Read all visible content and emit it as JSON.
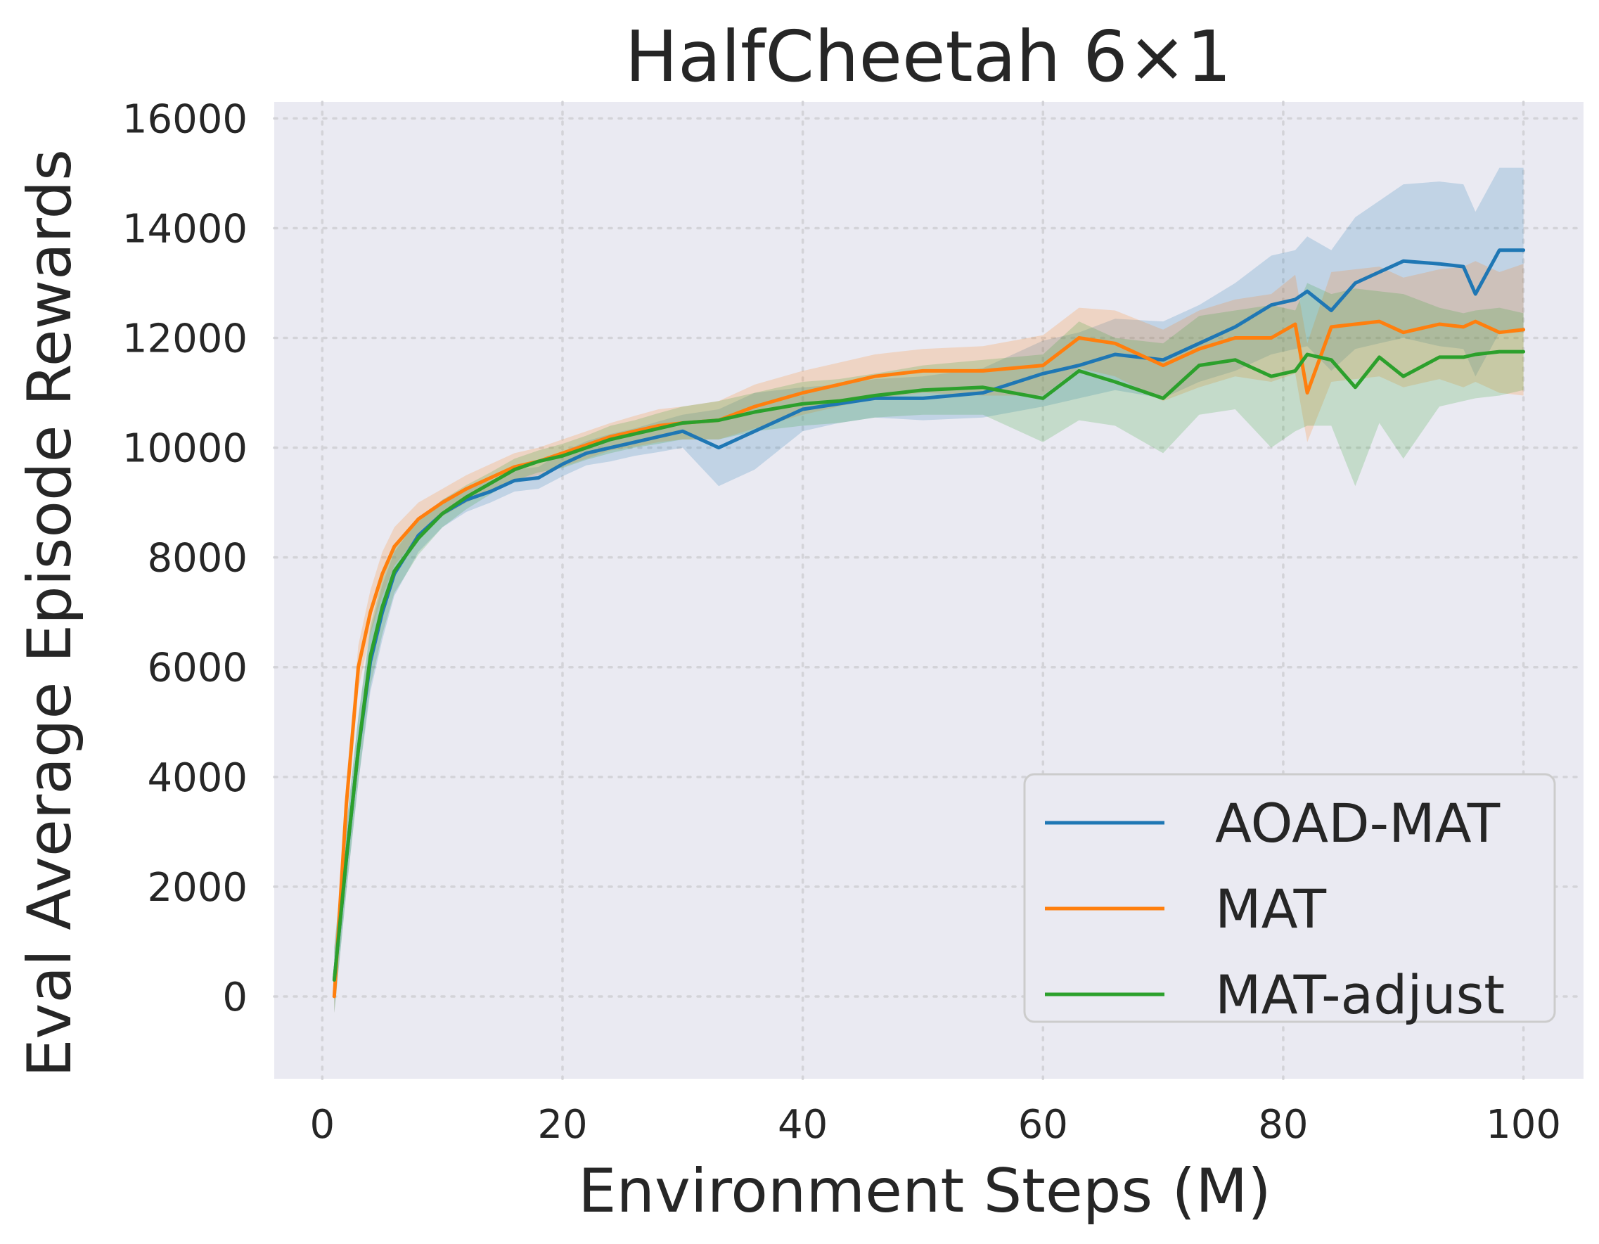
{
  "chart_data": {
    "type": "line",
    "title": "HalfCheetah 6×1",
    "xlabel": "Environment Steps (M)",
    "ylabel": "Eval Average Episode Rewards",
    "xlim": [
      -4,
      105
    ],
    "ylim": [
      -1500,
      16300
    ],
    "xticks": [
      0,
      20,
      40,
      60,
      80,
      100
    ],
    "xtick_labels": [
      "0",
      "20",
      "40",
      "60",
      "80",
      "100"
    ],
    "yticks": [
      0,
      2000,
      4000,
      6000,
      8000,
      10000,
      12000,
      14000,
      16000
    ],
    "ytick_labels": [
      "0",
      "2000",
      "4000",
      "6000",
      "8000",
      "10000",
      "12000",
      "14000",
      "16000"
    ],
    "grid": true,
    "grid_style": "dotted",
    "background": "#eaeaf2",
    "legend_position": "lower-right",
    "x": [
      1,
      2,
      3,
      4,
      5,
      6,
      8,
      10,
      12,
      14,
      16,
      18,
      20,
      22,
      24,
      26,
      28,
      30,
      33,
      36,
      40,
      43,
      46,
      50,
      55,
      60,
      63,
      66,
      70,
      73,
      76,
      79,
      81,
      82,
      84,
      86,
      88,
      90,
      93,
      95,
      96,
      98,
      100
    ],
    "series": [
      {
        "name": "AOAD-MAT",
        "color": "#1f77b4",
        "values": [
          300,
          2500,
          4500,
          6100,
          7000,
          7700,
          8400,
          8800,
          9050,
          9200,
          9400,
          9450,
          9700,
          9900,
          10000,
          10100,
          10200,
          10300,
          10000,
          10300,
          10700,
          10800,
          10900,
          10900,
          11000,
          11350,
          11500,
          11700,
          11600,
          11900,
          12200,
          12600,
          12700,
          12850,
          12500,
          13000,
          13200,
          13400,
          13350,
          13300,
          12800,
          13600,
          13600
        ],
        "band": [
          600,
          600,
          600,
          550,
          500,
          400,
          300,
          250,
          220,
          200,
          200,
          200,
          220,
          220,
          250,
          250,
          280,
          300,
          700,
          700,
          400,
          350,
          350,
          400,
          450,
          600,
          600,
          650,
          700,
          700,
          800,
          900,
          900,
          1000,
          1100,
          1200,
          1300,
          1400,
          1500,
          1500,
          1500,
          1500,
          1500
        ]
      },
      {
        "name": "MAT",
        "color": "#ff7f0e",
        "values": [
          0,
          3500,
          6000,
          7000,
          7700,
          8200,
          8700,
          9000,
          9250,
          9450,
          9650,
          9750,
          9900,
          10050,
          10200,
          10300,
          10400,
          10450,
          10500,
          10750,
          11000,
          11150,
          11300,
          11400,
          11400,
          11500,
          12000,
          11900,
          11500,
          11800,
          12000,
          12000,
          12250,
          11000,
          12200,
          12250,
          12300,
          12100,
          12250,
          12200,
          12300,
          12100,
          12150
        ],
        "band": [
          300,
          400,
          400,
          400,
          400,
          350,
          300,
          250,
          250,
          250,
          250,
          250,
          250,
          250,
          250,
          280,
          300,
          300,
          350,
          400,
          400,
          400,
          400,
          400,
          450,
          550,
          550,
          600,
          650,
          700,
          700,
          800,
          900,
          900,
          1000,
          1000,
          1000,
          1000,
          1000,
          1100,
          1100,
          1100,
          1200
        ]
      },
      {
        "name": "MAT-adjust",
        "color": "#2ca02c",
        "values": [
          300,
          2500,
          4500,
          6200,
          7100,
          7750,
          8350,
          8800,
          9100,
          9350,
          9600,
          9750,
          9850,
          10000,
          10150,
          10250,
          10350,
          10450,
          10500,
          10650,
          10800,
          10850,
          10950,
          11050,
          11100,
          10900,
          11400,
          11200,
          10900,
          11500,
          11600,
          11300,
          11400,
          11700,
          11600,
          11100,
          11650,
          11300,
          11650,
          11650,
          11700,
          11750,
          11750
        ],
        "band": [
          600,
          600,
          600,
          550,
          500,
          400,
          300,
          250,
          220,
          200,
          200,
          200,
          220,
          220,
          250,
          250,
          280,
          300,
          350,
          350,
          400,
          400,
          400,
          450,
          500,
          800,
          900,
          800,
          1000,
          900,
          900,
          1300,
          1100,
          1300,
          1200,
          1800,
          1200,
          1500,
          900,
          800,
          800,
          800,
          700
        ]
      }
    ]
  }
}
